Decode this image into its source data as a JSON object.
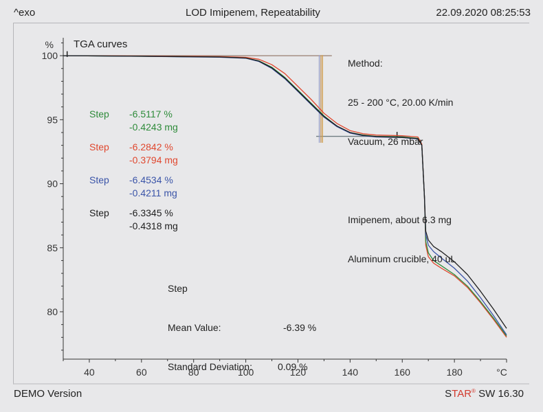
{
  "header": {
    "exo_label": "^exo",
    "title": "LOD Imipenem, Repeatability",
    "timestamp": "22.09.2020 08:25:53"
  },
  "footer": {
    "demo_label": "DEMO Version",
    "sw_prefix_s": "S",
    "sw_prefix_tar": "TAR",
    "sw_reg": "®",
    "sw_suffix": " SW 16.30"
  },
  "chart_data": {
    "type": "line",
    "title": "TGA curves",
    "xlabel": "°C",
    "ylabel": "%",
    "xlim": [
      30,
      200
    ],
    "ylim": [
      76.3,
      101.4
    ],
    "x_ticks": [
      "40",
      "60",
      "80",
      "100",
      "120",
      "140",
      "160",
      "180"
    ],
    "x_tick_values": [
      40,
      60,
      80,
      100,
      120,
      140,
      160,
      180
    ],
    "y_ticks": [
      "100",
      "95",
      "90",
      "85",
      "80"
    ],
    "y_tick_values": [
      100,
      95,
      90,
      85,
      80
    ],
    "grid": false,
    "series": [
      {
        "name": "green",
        "color": "#2e8b3a",
        "x": [
          30,
          60,
          90,
          100,
          105,
          110,
          115,
          120,
          125,
          130,
          135,
          140,
          145,
          150,
          160,
          166,
          167.5,
          168.5,
          169,
          170,
          172,
          175,
          180,
          185,
          190,
          195,
          200
        ],
        "y": [
          100,
          99.95,
          99.9,
          99.82,
          99.6,
          99.1,
          98.3,
          97.3,
          96.3,
          95.3,
          94.5,
          94.0,
          93.8,
          93.7,
          93.65,
          93.55,
          93.0,
          89,
          85.5,
          84.6,
          84.0,
          83.6,
          82.9,
          82.0,
          80.8,
          79.5,
          78.1
        ]
      },
      {
        "name": "red",
        "color": "#e0472e",
        "x": [
          30,
          60,
          90,
          100,
          105,
          110,
          115,
          120,
          125,
          130,
          135,
          140,
          145,
          150,
          160,
          166,
          167.5,
          168.5,
          169,
          170,
          172,
          175,
          180,
          185,
          190,
          195,
          200
        ],
        "y": [
          100,
          99.98,
          99.93,
          99.87,
          99.72,
          99.3,
          98.6,
          97.6,
          96.6,
          95.5,
          94.7,
          94.15,
          93.9,
          93.8,
          93.75,
          93.65,
          93.1,
          89,
          85.2,
          84.3,
          83.8,
          83.4,
          82.8,
          81.9,
          80.7,
          79.4,
          78.0
        ]
      },
      {
        "name": "blue",
        "color": "#3a54a8",
        "x": [
          30,
          60,
          90,
          100,
          105,
          110,
          115,
          120,
          125,
          130,
          135,
          140,
          145,
          150,
          160,
          166,
          167.5,
          168.5,
          169,
          170,
          172,
          175,
          180,
          185,
          190,
          195,
          200
        ],
        "y": [
          100,
          99.95,
          99.88,
          99.8,
          99.55,
          99.0,
          98.2,
          97.2,
          96.2,
          95.2,
          94.45,
          93.95,
          93.75,
          93.65,
          93.6,
          93.5,
          93.0,
          89,
          86.0,
          85.2,
          84.7,
          84.2,
          83.4,
          82.4,
          81.1,
          79.7,
          78.2
        ]
      },
      {
        "name": "black",
        "color": "#1e1e1e",
        "x": [
          30,
          60,
          90,
          100,
          105,
          110,
          115,
          120,
          125,
          130,
          135,
          140,
          145,
          150,
          160,
          166,
          167.5,
          168.5,
          169,
          170,
          172,
          175,
          180,
          185,
          190,
          195,
          200
        ],
        "y": [
          100,
          99.96,
          99.9,
          99.82,
          99.58,
          99.05,
          98.25,
          97.25,
          96.25,
          95.25,
          94.5,
          94.0,
          93.78,
          93.68,
          93.62,
          93.52,
          93.0,
          89,
          86.3,
          85.6,
          85.1,
          84.7,
          83.9,
          82.9,
          81.6,
          80.2,
          78.7
        ]
      }
    ],
    "baselines": [
      {
        "name": "upper-baseline",
        "y": 100.0,
        "x_from": 31,
        "x_to": 133
      },
      {
        "name": "lower-baseline",
        "y": 93.7,
        "x_from": 127,
        "x_to": 163
      }
    ],
    "step_markers_x": [
      128.2,
      128.8,
      129.4
    ],
    "annotations": {
      "method": [
        "Method:",
        "25 - 200 °C, 20.00 K/min",
        "Vacuum, 26 mbar",
        "",
        "Imipenem, about 6.3 mg",
        "Aluminum crucible, 40 uL"
      ],
      "steps": [
        {
          "label": "Step",
          "percent": "-6.5117 %",
          "mass": "-0.4243 mg",
          "color": "#2e8b3a"
        },
        {
          "label": "Step",
          "percent": "-6.2842 %",
          "mass": "-0.3794 mg",
          "color": "#e0472e"
        },
        {
          "label": "Step",
          "percent": "-6.4534 %",
          "mass": "-0.4211 mg",
          "color": "#3a54a8"
        },
        {
          "label": "Step",
          "percent": "-6.3345 %",
          "mass": "-0.4318 mg",
          "color": "#1e1e1e"
        }
      ],
      "summary": {
        "heading": "Step",
        "mean_label": "Mean Value:",
        "mean_value": "-6.39 %",
        "sd_label": "Standard Deviation:",
        "sd_value": "0.09 %"
      }
    }
  }
}
